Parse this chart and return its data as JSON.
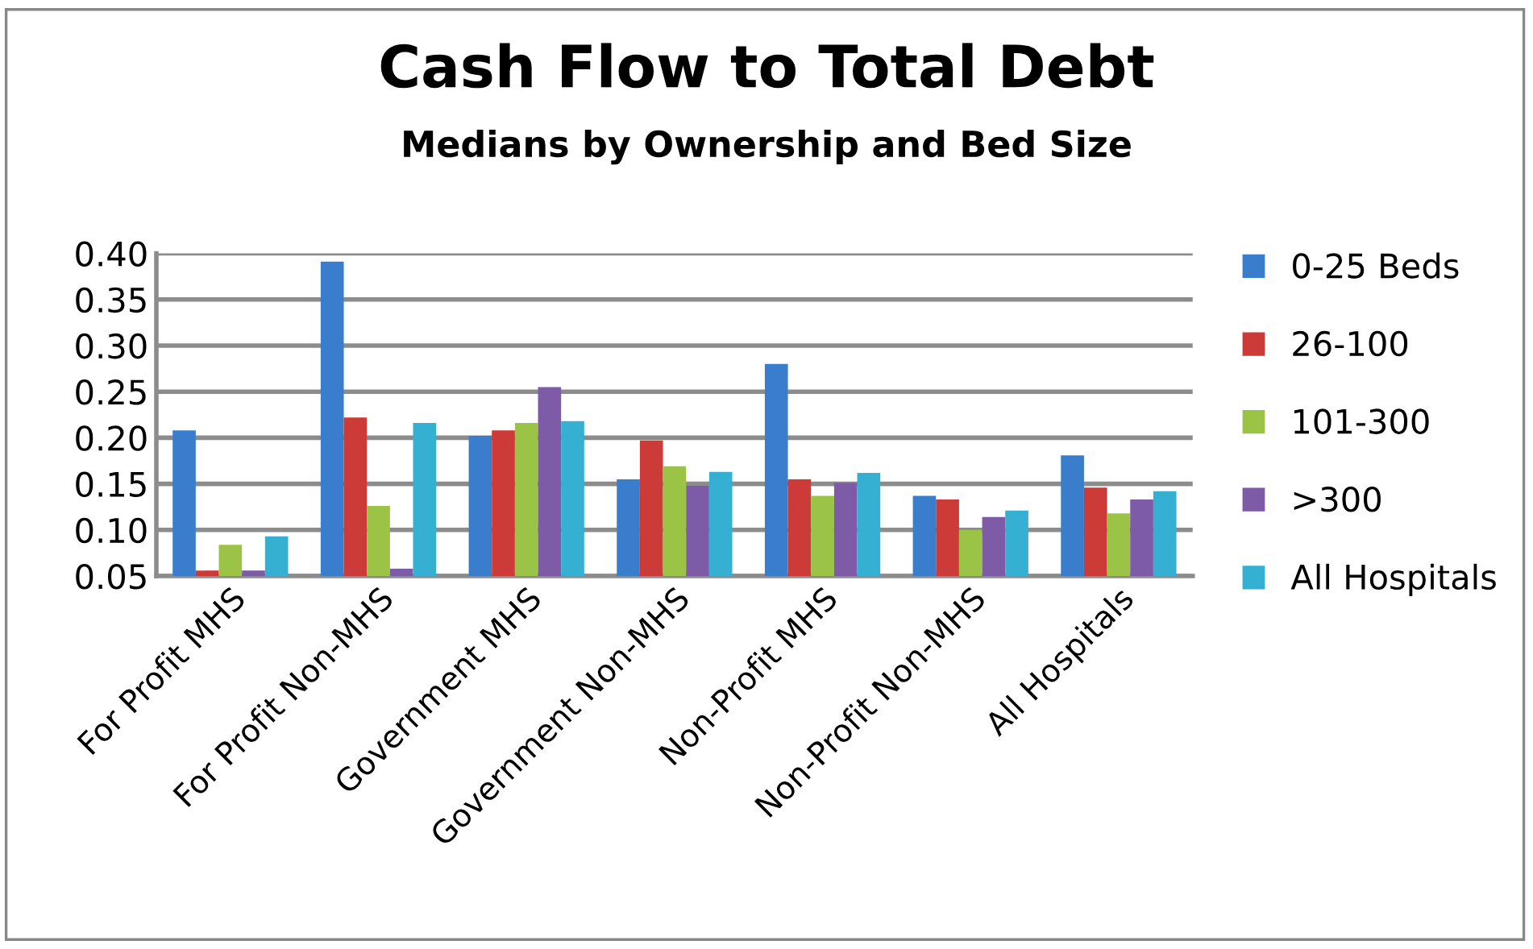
{
  "chart_data": {
    "type": "bar",
    "title": "Cash Flow to Total Debt",
    "subtitle": "Medians by Ownership and Bed Size",
    "categories": [
      "For Profit MHS",
      "For Profit Non-MHS",
      "Government MHS",
      "Government Non-MHS",
      "Non-Profit MHS",
      "Non-Profit Non-MHS",
      "All Hospitals"
    ],
    "series": [
      {
        "name": "0-25 Beds",
        "color": "#3a7dcd",
        "values": [
          0.208,
          0.391,
          0.202,
          0.155,
          0.28,
          0.137,
          0.181
        ]
      },
      {
        "name": "26-100",
        "color": "#cc3b37",
        "values": [
          0.056,
          0.222,
          0.208,
          0.197,
          0.155,
          0.133,
          0.146
        ]
      },
      {
        "name": "101-300",
        "color": "#9bc346",
        "values": [
          0.084,
          0.126,
          0.216,
          0.169,
          0.137,
          0.1,
          0.118
        ]
      },
      {
        "name": ">300",
        "color": "#7d5ba6",
        "values": [
          0.056,
          0.058,
          0.255,
          0.148,
          0.151,
          0.114,
          0.133
        ]
      },
      {
        "name": "All Hospitals",
        "color": "#35afd2",
        "values": [
          0.093,
          0.216,
          0.218,
          0.163,
          0.162,
          0.121,
          0.142
        ]
      }
    ],
    "ylim": [
      0.05,
      0.4
    ],
    "yticks": [
      {
        "value": 0.05,
        "label": "0.05"
      },
      {
        "value": 0.1,
        "label": "0.10"
      },
      {
        "value": 0.15,
        "label": "0.15"
      },
      {
        "value": 0.2,
        "label": "0.20"
      },
      {
        "value": 0.25,
        "label": "0.25"
      },
      {
        "value": 0.3,
        "label": "0.30"
      },
      {
        "value": 0.35,
        "label": "0.35"
      },
      {
        "value": 0.4,
        "label": "0.40"
      }
    ],
    "grid": "y",
    "legend": "right"
  }
}
